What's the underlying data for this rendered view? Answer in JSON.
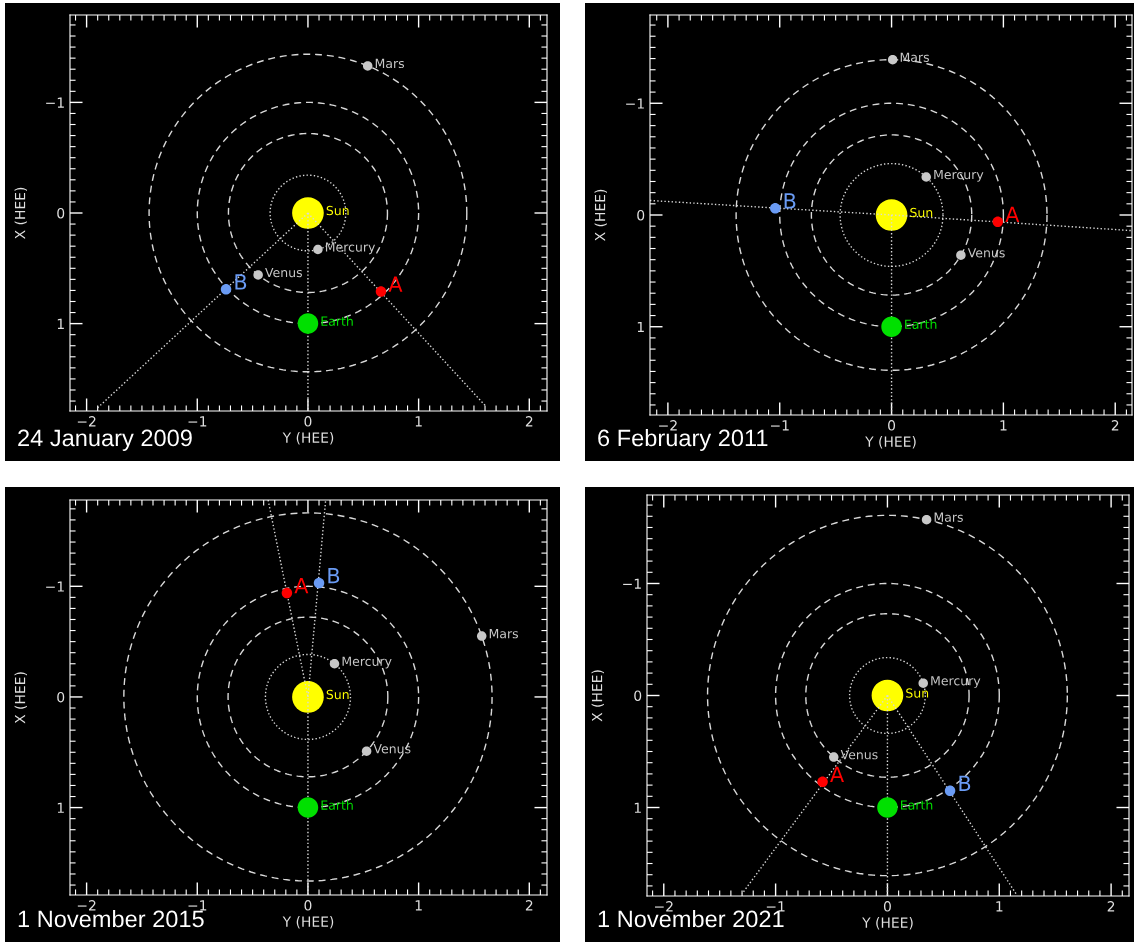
{
  "chart_data": [
    {
      "type": "bubble",
      "xlabel": "Y (HEE)",
      "ylabel": "X (HEE)",
      "xlim": [
        -2.15,
        2.16
      ],
      "ylim": [
        1.79,
        -1.79
      ],
      "xticks": [
        -2,
        -1,
        0,
        1,
        2
      ],
      "yticks": [
        -1,
        0,
        1
      ],
      "annotations": [
        "24 January 2009"
      ],
      "series": [
        {
          "type": "line",
          "color": "#d9d9d9",
          "line_style": "dotted",
          "x": [
            0,
            0
          ],
          "values": [
            0,
            1.79
          ]
        },
        {
          "type": "line",
          "color": "#d9d9d9",
          "line_style": "dotted",
          "x": [
            0,
            1.61
          ],
          "values": [
            0,
            1.75
          ]
        },
        {
          "type": "line",
          "color": "#d9d9d9",
          "line_style": "dotted",
          "x": [
            0,
            -1.91
          ],
          "values": [
            0,
            1.77
          ]
        },
        {
          "name": "Sun",
          "color": "#ffff00",
          "x": [
            0
          ],
          "values": [
            0
          ],
          "sizes": [
            1
          ]
        },
        {
          "name": "Earth",
          "color": "#00e000",
          "x": [
            0
          ],
          "values": [
            1
          ],
          "sizes": [
            0.42
          ]
        },
        {
          "name": "Mercury",
          "color": "#c8c8c8",
          "x": [
            0.09
          ],
          "values": [
            0.33
          ],
          "sizes": [
            0.09
          ]
        },
        {
          "name": "Venus",
          "color": "#c8c8c8",
          "x": [
            -0.45
          ],
          "values": [
            0.56
          ],
          "sizes": [
            0.09
          ]
        },
        {
          "name": "Mars",
          "color": "#c8c8c8",
          "x": [
            0.54
          ],
          "values": [
            -1.33
          ],
          "sizes": [
            0.09
          ]
        },
        {
          "name": "A",
          "color": "#ff0000",
          "x": [
            0.66
          ],
          "values": [
            0.71
          ],
          "sizes": [
            0.11
          ]
        },
        {
          "name": "B",
          "color": "#6a9bf4",
          "x": [
            -0.74
          ],
          "values": [
            0.69
          ],
          "sizes": [
            0.11
          ]
        }
      ]
    },
    {
      "type": "bubble",
      "xlabel": "Y (HEE)",
      "ylabel": "X (HEE)",
      "xlim": [
        -2.16,
        2.15
      ],
      "ylim": [
        1.79,
        -1.79
      ],
      "xticks": [
        -2,
        -1,
        0,
        1,
        2
      ],
      "yticks": [
        -1,
        0,
        1
      ],
      "annotations": [
        "6 February 2011"
      ],
      "series": [
        {
          "type": "line",
          "color": "#d9d9d9",
          "line_style": "dotted",
          "x": [
            0,
            0
          ],
          "values": [
            0,
            1.79
          ]
        },
        {
          "type": "line",
          "color": "#d9d9d9",
          "line_style": "dotted",
          "x": [
            -2.16,
            0,
            2.15
          ],
          "values": [
            -0.13,
            0,
            0.14
          ]
        },
        {
          "name": "Sun",
          "color": "#ffff00",
          "x": [
            0
          ],
          "values": [
            0
          ],
          "sizes": [
            1
          ]
        },
        {
          "name": "Earth",
          "color": "#00e000",
          "x": [
            0
          ],
          "values": [
            1
          ],
          "sizes": [
            0.42
          ]
        },
        {
          "name": "Mercury",
          "color": "#c8c8c8",
          "x": [
            0.31
          ],
          "values": [
            -0.34
          ],
          "sizes": [
            0.09
          ]
        },
        {
          "name": "Venus",
          "color": "#c8c8c8",
          "x": [
            0.62
          ],
          "values": [
            0.36
          ],
          "sizes": [
            0.09
          ]
        },
        {
          "name": "Mars",
          "color": "#c8c8c8",
          "x": [
            0.01
          ],
          "values": [
            -1.39
          ],
          "sizes": [
            0.09
          ]
        },
        {
          "name": "A",
          "color": "#ff0000",
          "x": [
            0.95
          ],
          "values": [
            0.06
          ],
          "sizes": [
            0.11
          ]
        },
        {
          "name": "B",
          "color": "#6a9bf4",
          "x": [
            -1.04
          ],
          "values": [
            -0.06
          ],
          "sizes": [
            0.11
          ]
        }
      ]
    },
    {
      "type": "bubble",
      "xlabel": "Y (HEE)",
      "ylabel": "X (HEE)",
      "xlim": [
        -2.15,
        2.16
      ],
      "ylim": [
        1.79,
        -1.78
      ],
      "xticks": [
        -2,
        -1,
        0,
        1,
        2
      ],
      "yticks": [
        -1,
        0,
        1
      ],
      "annotations": [
        "1 November 2015"
      ],
      "series": [
        {
          "type": "line",
          "color": "#d9d9d9",
          "line_style": "dotted",
          "x": [
            -0.36,
            0,
            0
          ],
          "values": [
            -1.78,
            0,
            1.79
          ]
        },
        {
          "type": "line",
          "color": "#d9d9d9",
          "line_style": "dotted",
          "x": [
            0,
            0.16
          ],
          "values": [
            0,
            -1.78
          ]
        },
        {
          "name": "Sun",
          "color": "#ffff00",
          "x": [
            0
          ],
          "values": [
            0
          ],
          "sizes": [
            1
          ]
        },
        {
          "name": "Earth",
          "color": "#00e000",
          "x": [
            0
          ],
          "values": [
            1
          ],
          "sizes": [
            0.42
          ]
        },
        {
          "name": "Mercury",
          "color": "#c8c8c8",
          "x": [
            0.24
          ],
          "values": [
            -0.3
          ],
          "sizes": [
            0.09
          ]
        },
        {
          "name": "Venus",
          "color": "#c8c8c8",
          "x": [
            0.53
          ],
          "values": [
            0.49
          ],
          "sizes": [
            0.09
          ]
        },
        {
          "name": "Mars",
          "color": "#c8c8c8",
          "x": [
            1.57
          ],
          "values": [
            -0.55
          ],
          "sizes": [
            0.09
          ]
        },
        {
          "name": "A",
          "color": "#ff0000",
          "x": [
            -0.19
          ],
          "values": [
            -0.94
          ],
          "sizes": [
            0.11
          ]
        },
        {
          "name": "B",
          "color": "#6a9bf4",
          "x": [
            0.1
          ],
          "values": [
            -1.03
          ],
          "sizes": [
            0.11
          ]
        }
      ]
    },
    {
      "type": "bubble",
      "xlabel": "Y (HEE)",
      "ylabel": "X (HEE)",
      "xlim": [
        -2.15,
        2.16
      ],
      "ylim": [
        1.79,
        -1.79
      ],
      "xticks": [
        -2,
        -1,
        0,
        1,
        2
      ],
      "yticks": [
        -1,
        0,
        1
      ],
      "annotations": [
        "1 November 2021"
      ],
      "series": [
        {
          "type": "line",
          "color": "#d9d9d9",
          "line_style": "dotted",
          "x": [
            0,
            0
          ],
          "values": [
            0,
            1.79
          ]
        },
        {
          "type": "line",
          "color": "#d9d9d9",
          "line_style": "dotted",
          "x": [
            0,
            -1.3
          ],
          "values": [
            0,
            1.77
          ]
        },
        {
          "type": "line",
          "color": "#d9d9d9",
          "line_style": "dotted",
          "x": [
            0,
            1.15
          ],
          "values": [
            0,
            1.77
          ]
        },
        {
          "name": "Sun",
          "color": "#ffff00",
          "x": [
            0
          ],
          "values": [
            0
          ],
          "sizes": [
            1
          ]
        },
        {
          "name": "Earth",
          "color": "#00e000",
          "x": [
            0
          ],
          "values": [
            1
          ],
          "sizes": [
            0.42
          ]
        },
        {
          "name": "Mercury",
          "color": "#c8c8c8",
          "x": [
            0.32
          ],
          "values": [
            -0.11
          ],
          "sizes": [
            0.09
          ]
        },
        {
          "name": "Venus",
          "color": "#c8c8c8",
          "x": [
            -0.48
          ],
          "values": [
            0.55
          ],
          "sizes": [
            0.09
          ]
        },
        {
          "name": "Mars",
          "color": "#c8c8c8",
          "x": [
            0.35
          ],
          "values": [
            -1.57
          ],
          "sizes": [
            0.09
          ]
        },
        {
          "name": "A",
          "color": "#ff0000",
          "x": [
            -0.58
          ],
          "values": [
            0.77
          ],
          "sizes": [
            0.11
          ]
        },
        {
          "name": "B",
          "color": "#6a9bf4",
          "x": [
            0.56
          ],
          "values": [
            0.85
          ],
          "sizes": [
            0.11
          ]
        }
      ]
    }
  ]
}
